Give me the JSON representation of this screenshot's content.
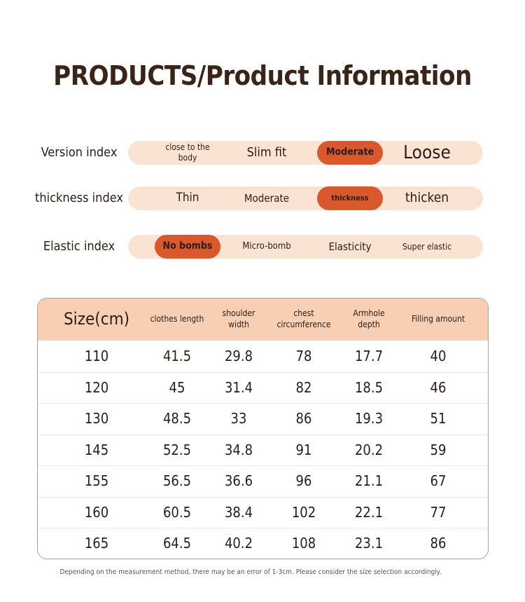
{
  "header": {
    "title": "PRODUCTS/Product Information"
  },
  "indices": [
    {
      "label": "Version index",
      "options": [
        "close to the body",
        "Slim fit",
        "Moderate",
        "Loose"
      ],
      "selected": 2
    },
    {
      "label": "thickness index",
      "options": [
        "Thin",
        "Moderate",
        "thickness",
        "thicken"
      ],
      "selected": 2
    },
    {
      "label": "Elastic index",
      "options": [
        "No bombs",
        "Micro-bomb",
        "Elasticity",
        "Super elastic"
      ],
      "selected": 0
    }
  ],
  "table": {
    "headers": [
      "Size(cm)",
      "clothes length",
      "shoulder width",
      "chest circumference",
      "Armhole depth",
      "Filling amount"
    ],
    "rows": [
      [
        110,
        41.5,
        29.8,
        78,
        17.7,
        40
      ],
      [
        120,
        45,
        31.4,
        82,
        18.5,
        46
      ],
      [
        130,
        48.5,
        33,
        86,
        19.3,
        51
      ],
      [
        145,
        52.5,
        34.8,
        91,
        20.2,
        59
      ],
      [
        155,
        56.5,
        36.6,
        96,
        21.1,
        67
      ],
      [
        160,
        60.5,
        38.4,
        102,
        22.1,
        77
      ],
      [
        165,
        64.5,
        40.2,
        108,
        23.1,
        86
      ]
    ]
  },
  "footer": {
    "note": "Depending on the measurement method, there may be an error of 1-3cm. Please consider the size selection accordingly."
  }
}
